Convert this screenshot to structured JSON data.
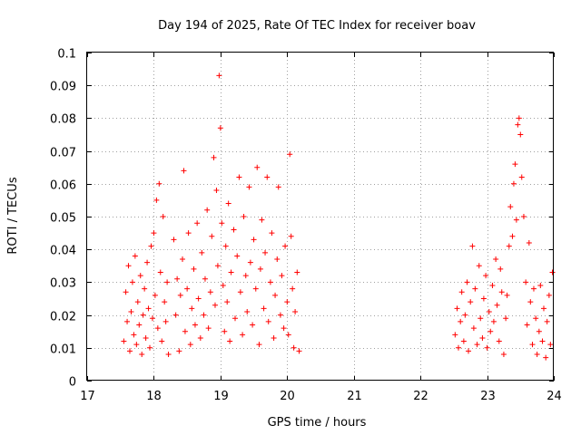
{
  "chart_data": {
    "type": "scatter",
    "title": "Day 194 of 2025, Rate Of TEC Index for receiver boav",
    "xlabel": "GPS time / hours",
    "ylabel": "ROTI / TECUs",
    "xlim": [
      17,
      24
    ],
    "ylim": [
      0,
      0.1
    ],
    "x_ticks": [
      "17",
      "18",
      "19",
      "20",
      "21",
      "22",
      "23",
      "24"
    ],
    "y_ticks": [
      "0",
      "0.01",
      "0.02",
      "0.03",
      "0.04",
      "0.05",
      "0.06",
      "0.07",
      "0.08",
      "0.09",
      "0.1"
    ],
    "grid": true,
    "marker": "plus",
    "color": "#ff0000",
    "series": [
      {
        "name": "ROTI",
        "points": [
          [
            17.55,
            0.012
          ],
          [
            17.58,
            0.027
          ],
          [
            17.6,
            0.018
          ],
          [
            17.62,
            0.035
          ],
          [
            17.64,
            0.009
          ],
          [
            17.66,
            0.021
          ],
          [
            17.68,
            0.03
          ],
          [
            17.7,
            0.014
          ],
          [
            17.72,
            0.038
          ],
          [
            17.74,
            0.011
          ],
          [
            17.76,
            0.024
          ],
          [
            17.78,
            0.017
          ],
          [
            17.8,
            0.032
          ],
          [
            17.82,
            0.008
          ],
          [
            17.84,
            0.02
          ],
          [
            17.86,
            0.028
          ],
          [
            17.88,
            0.013
          ],
          [
            17.9,
            0.036
          ],
          [
            17.92,
            0.022
          ],
          [
            17.94,
            0.01
          ],
          [
            17.96,
            0.041
          ],
          [
            17.98,
            0.019
          ],
          [
            18.0,
            0.045
          ],
          [
            18.02,
            0.026
          ],
          [
            18.04,
            0.055
          ],
          [
            18.06,
            0.016
          ],
          [
            18.08,
            0.06
          ],
          [
            18.1,
            0.033
          ],
          [
            18.12,
            0.012
          ],
          [
            18.14,
            0.05
          ],
          [
            18.16,
            0.024
          ],
          [
            18.18,
            0.018
          ],
          [
            18.2,
            0.03
          ],
          [
            18.22,
            0.008
          ],
          [
            18.3,
            0.043
          ],
          [
            18.33,
            0.02
          ],
          [
            18.35,
            0.031
          ],
          [
            18.38,
            0.009
          ],
          [
            18.4,
            0.026
          ],
          [
            18.43,
            0.037
          ],
          [
            18.45,
            0.064
          ],
          [
            18.47,
            0.015
          ],
          [
            18.5,
            0.028
          ],
          [
            18.52,
            0.045
          ],
          [
            18.55,
            0.011
          ],
          [
            18.57,
            0.022
          ],
          [
            18.6,
            0.034
          ],
          [
            18.62,
            0.017
          ],
          [
            18.65,
            0.048
          ],
          [
            18.67,
            0.025
          ],
          [
            18.7,
            0.013
          ],
          [
            18.72,
            0.039
          ],
          [
            18.75,
            0.02
          ],
          [
            18.77,
            0.031
          ],
          [
            18.8,
            0.052
          ],
          [
            18.82,
            0.016
          ],
          [
            18.85,
            0.027
          ],
          [
            18.87,
            0.044
          ],
          [
            18.9,
            0.068
          ],
          [
            18.92,
            0.023
          ],
          [
            18.94,
            0.058
          ],
          [
            18.96,
            0.035
          ],
          [
            18.98,
            0.093
          ],
          [
            19.0,
            0.077
          ],
          [
            19.02,
            0.048
          ],
          [
            19.04,
            0.029
          ],
          [
            19.06,
            0.015
          ],
          [
            19.08,
            0.041
          ],
          [
            19.1,
            0.024
          ],
          [
            19.12,
            0.054
          ],
          [
            19.14,
            0.012
          ],
          [
            19.16,
            0.033
          ],
          [
            19.2,
            0.046
          ],
          [
            19.22,
            0.019
          ],
          [
            19.25,
            0.038
          ],
          [
            19.28,
            0.062
          ],
          [
            19.3,
            0.027
          ],
          [
            19.33,
            0.014
          ],
          [
            19.35,
            0.05
          ],
          [
            19.38,
            0.032
          ],
          [
            19.4,
            0.021
          ],
          [
            19.43,
            0.059
          ],
          [
            19.45,
            0.036
          ],
          [
            19.48,
            0.017
          ],
          [
            19.5,
            0.043
          ],
          [
            19.53,
            0.028
          ],
          [
            19.55,
            0.065
          ],
          [
            19.58,
            0.011
          ],
          [
            19.6,
            0.034
          ],
          [
            19.62,
            0.049
          ],
          [
            19.65,
            0.022
          ],
          [
            19.67,
            0.039
          ],
          [
            19.7,
            0.062
          ],
          [
            19.72,
            0.018
          ],
          [
            19.75,
            0.03
          ],
          [
            19.77,
            0.045
          ],
          [
            19.8,
            0.013
          ],
          [
            19.82,
            0.026
          ],
          [
            19.85,
            0.037
          ],
          [
            19.87,
            0.059
          ],
          [
            19.9,
            0.02
          ],
          [
            19.92,
            0.032
          ],
          [
            19.95,
            0.016
          ],
          [
            19.97,
            0.041
          ],
          [
            20.0,
            0.024
          ],
          [
            20.02,
            0.014
          ],
          [
            20.04,
            0.069
          ],
          [
            20.06,
            0.044
          ],
          [
            20.08,
            0.028
          ],
          [
            20.1,
            0.01
          ],
          [
            20.12,
            0.021
          ],
          [
            20.15,
            0.033
          ],
          [
            20.18,
            0.009
          ],
          [
            22.52,
            0.014
          ],
          [
            22.55,
            0.022
          ],
          [
            22.57,
            0.01
          ],
          [
            22.6,
            0.018
          ],
          [
            22.62,
            0.027
          ],
          [
            22.65,
            0.012
          ],
          [
            22.67,
            0.02
          ],
          [
            22.7,
            0.03
          ],
          [
            22.72,
            0.009
          ],
          [
            22.75,
            0.024
          ],
          [
            22.78,
            0.041
          ],
          [
            22.8,
            0.016
          ],
          [
            22.82,
            0.028
          ],
          [
            22.85,
            0.011
          ],
          [
            22.88,
            0.035
          ],
          [
            22.9,
            0.019
          ],
          [
            22.93,
            0.013
          ],
          [
            22.95,
            0.025
          ],
          [
            22.98,
            0.032
          ],
          [
            23.0,
            0.01
          ],
          [
            23.03,
            0.021
          ],
          [
            23.05,
            0.015
          ],
          [
            23.08,
            0.029
          ],
          [
            23.1,
            0.018
          ],
          [
            23.13,
            0.037
          ],
          [
            23.15,
            0.023
          ],
          [
            23.18,
            0.012
          ],
          [
            23.2,
            0.034
          ],
          [
            23.22,
            0.027
          ],
          [
            23.25,
            0.008
          ],
          [
            23.28,
            0.019
          ],
          [
            23.3,
            0.026
          ],
          [
            23.33,
            0.041
          ],
          [
            23.35,
            0.053
          ],
          [
            23.38,
            0.044
          ],
          [
            23.4,
            0.06
          ],
          [
            23.42,
            0.066
          ],
          [
            23.44,
            0.049
          ],
          [
            23.46,
            0.078
          ],
          [
            23.48,
            0.08
          ],
          [
            23.5,
            0.075
          ],
          [
            23.52,
            0.062
          ],
          [
            23.55,
            0.05
          ],
          [
            23.58,
            0.03
          ],
          [
            23.6,
            0.017
          ],
          [
            23.63,
            0.042
          ],
          [
            23.65,
            0.024
          ],
          [
            23.68,
            0.011
          ],
          [
            23.7,
            0.028
          ],
          [
            23.73,
            0.019
          ],
          [
            23.75,
            0.008
          ],
          [
            23.78,
            0.015
          ],
          [
            23.8,
            0.029
          ],
          [
            23.83,
            0.012
          ],
          [
            23.85,
            0.022
          ],
          [
            23.88,
            0.007
          ],
          [
            23.9,
            0.018
          ],
          [
            23.93,
            0.026
          ],
          [
            23.95,
            0.011
          ],
          [
            23.98,
            0.033
          ]
        ]
      }
    ]
  }
}
